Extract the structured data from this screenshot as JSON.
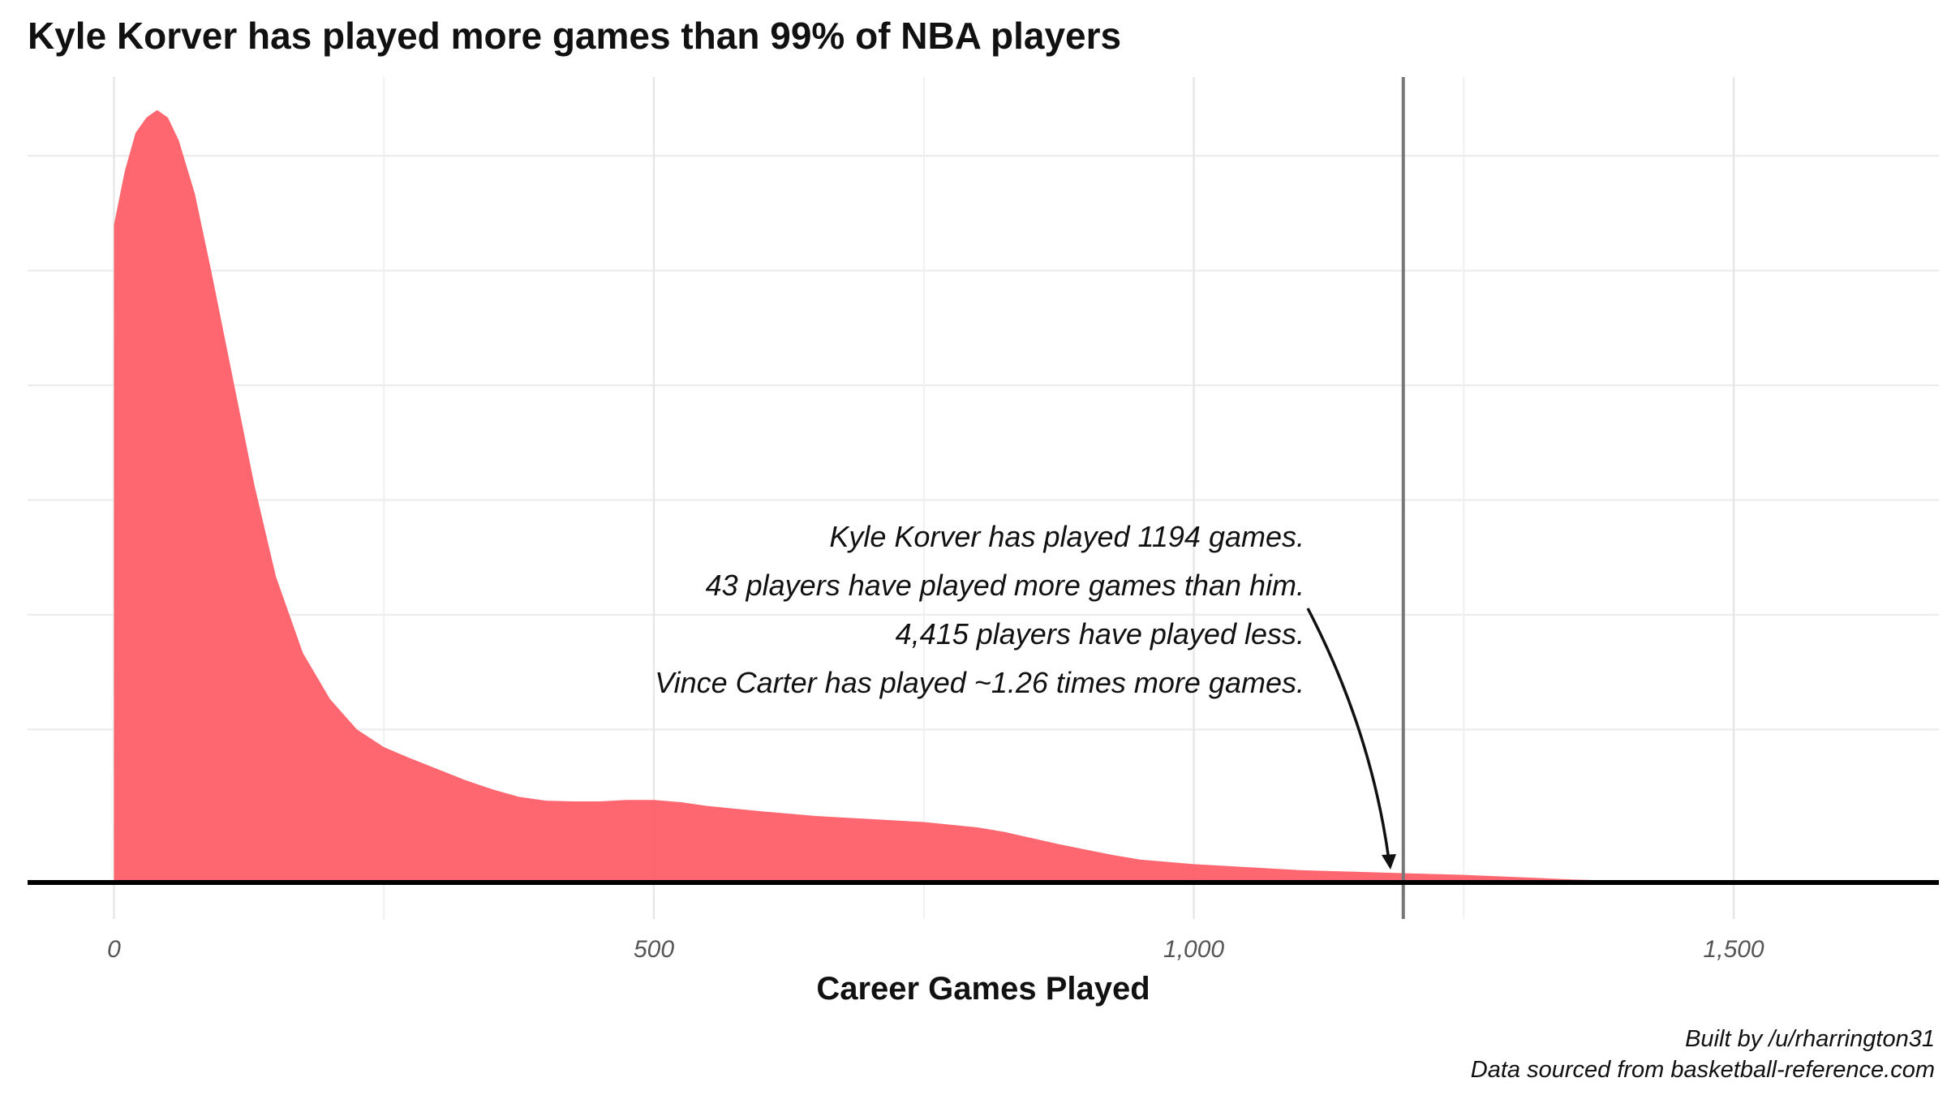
{
  "chart_data": {
    "type": "area",
    "title": "Kyle Korver has played more games than 99% of NBA players",
    "xlabel": "Career Games Played",
    "ylabel": "",
    "xlim": [
      -80,
      1690
    ],
    "ylim": [
      0,
      1
    ],
    "x_ticks": [
      0,
      500,
      1000,
      1500
    ],
    "x_tick_labels": [
      "0",
      "500",
      "1,000",
      "1,500"
    ],
    "y_tick_labels": [],
    "grid": true,
    "legend": "none",
    "fill_color": "#ff5a64",
    "series": [
      {
        "x": [
          0,
          10,
          20,
          30,
          40,
          50,
          60,
          75,
          90,
          110,
          130,
          150,
          175,
          200,
          225,
          250,
          275,
          300,
          325,
          350,
          375,
          400,
          425,
          450,
          475,
          500,
          525,
          550,
          600,
          650,
          700,
          750,
          800,
          825,
          850,
          875,
          900,
          925,
          950,
          1000,
          1050,
          1100,
          1150,
          1200,
          1250,
          1300,
          1350,
          1400,
          1450,
          1500,
          1550,
          1600,
          1690
        ],
        "values": [
          0.86,
          0.93,
          0.98,
          1.0,
          1.01,
          1.0,
          0.97,
          0.9,
          0.8,
          0.66,
          0.52,
          0.4,
          0.3,
          0.24,
          0.2,
          0.177,
          0.162,
          0.148,
          0.134,
          0.122,
          0.112,
          0.107,
          0.106,
          0.106,
          0.108,
          0.108,
          0.105,
          0.1,
          0.093,
          0.087,
          0.083,
          0.079,
          0.072,
          0.066,
          0.058,
          0.05,
          0.043,
          0.036,
          0.03,
          0.024,
          0.02,
          0.016,
          0.014,
          0.012,
          0.01,
          0.007,
          0.004,
          0.002,
          0.001,
          0.0,
          0.0,
          0.0,
          0.0
        ]
      }
    ],
    "reference_line_x": 1194,
    "annotation_lines": [
      "Kyle Korver has played 1194 games.",
      "43 players have played more games than him.",
      "4,415 players have played less.",
      "Vince Carter has played ~1.26 times more games."
    ],
    "caption_lines": [
      "Built by /u/rharrington31",
      "Data sourced from basketball-reference.com"
    ]
  }
}
